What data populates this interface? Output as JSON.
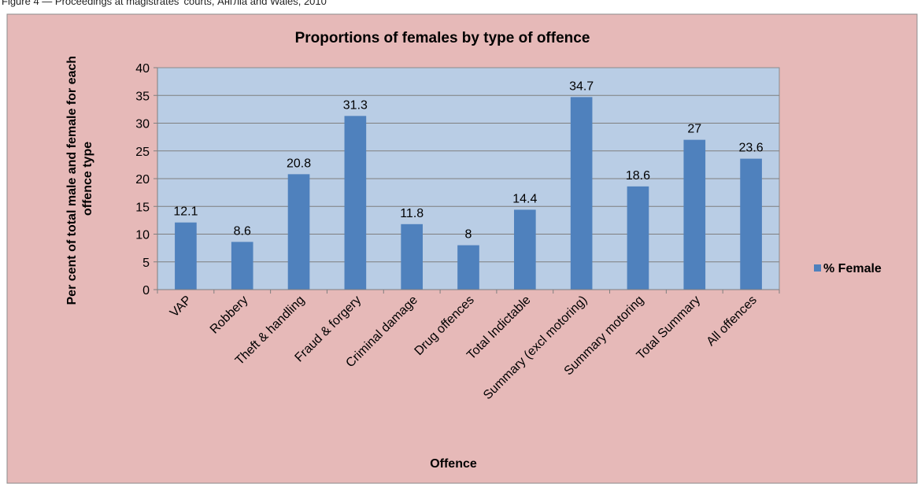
{
  "caption": "Figure 4 — Proceedings at magistrates' courts, Англia and Wales, 2010",
  "colors": {
    "frame_bg": "#e6b9b8",
    "plot_bg": "#b9cde5",
    "bar": "#4f81bd",
    "grid": "#7f7f7f",
    "text": "#000000"
  },
  "chart_data": {
    "type": "bar",
    "title": "Proportions of females by type of  offence",
    "xlabel": "Offence",
    "ylabel": "Per cent of total male and female  for each offence type",
    "ylabel_lines": [
      "Per cent of total male and female  for each",
      "offence type"
    ],
    "ylim": [
      0,
      40
    ],
    "yticks": [
      0,
      5,
      10,
      15,
      20,
      25,
      30,
      35,
      40
    ],
    "grid": true,
    "legend_position": "right",
    "categories": [
      "VAP",
      "Robbery",
      "Theft & handling",
      "Fraud & forgery",
      "Criminal damage",
      "Drug offences",
      "Total Indictable",
      "Summary (excl motoring)",
      "Summary motoring",
      "Total Summary",
      "All offences"
    ],
    "series": [
      {
        "name": "% Female",
        "values": [
          12.1,
          8.6,
          20.8,
          31.3,
          11.8,
          8,
          14.4,
          34.7,
          18.6,
          27,
          23.6
        ],
        "data_labels": [
          "12.1",
          "8.6",
          "20.8",
          "31.3",
          "11.8",
          "8",
          "14.4",
          "34.7",
          "18.6",
          "27",
          "23.6"
        ]
      }
    ]
  }
}
